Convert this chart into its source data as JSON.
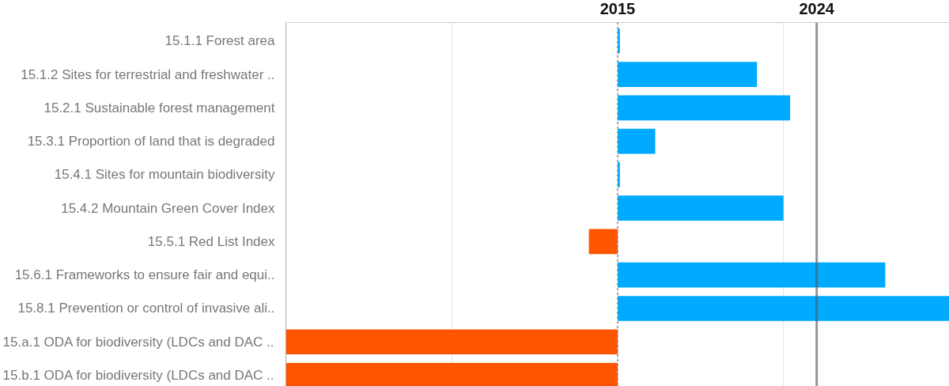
{
  "chart_data": {
    "type": "bar",
    "orientation": "horizontal",
    "categories": [
      "15.1.1 Forest area",
      "15.1.2 Sites for terrestrial and freshwater ..",
      "15.2.1 Sustainable forest management",
      "15.3.1 Proportion of land that is degraded",
      "15.4.1 Sites for mountain biodiversity",
      "15.4.2 Mountain Green Cover Index",
      "15.5.1 Red List Index",
      "15.6.1 Frameworks to ensure fair and equi..",
      "15.8.1 Prevention or control of invasive ali..",
      "15.a.1 ODA for biodiversity (LDCs and DAC ..",
      "15.b.1 ODA for biodiversity (LDCs and DAC .."
    ],
    "base": [
      2015,
      2015,
      2015,
      2015,
      2015,
      2015,
      2015,
      2015,
      2015,
      2015,
      2015
    ],
    "values": [
      0.1,
      6.3,
      7.8,
      1.7,
      0.1,
      7.5,
      -1.3,
      12.1,
      15,
      -15,
      -15
    ],
    "colors": [
      "#00aaff",
      "#00aaff",
      "#00aaff",
      "#00aaff",
      "#00aaff",
      "#00aaff",
      "#ff5500",
      "#00aaff",
      "#00aaff",
      "#ff5500",
      "#ff5500"
    ],
    "xlim": [
      2000,
      2030
    ],
    "xticks": [
      {
        "value": 2007.5,
        "label": null
      },
      2015,
      {
        "value": 2022.5,
        "label": null
      },
      2024
    ],
    "grid": "x",
    "ref_lines": [
      {
        "axis": "x",
        "value": 2015,
        "color": "#888888",
        "line_style": "dotted"
      },
      {
        "axis": "x",
        "value": 2024,
        "color": "#555555",
        "line_style": "solid"
      }
    ]
  }
}
